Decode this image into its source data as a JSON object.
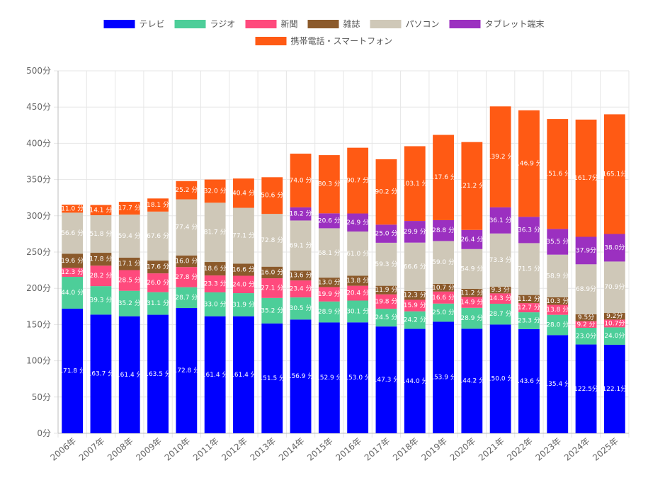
{
  "chart_data": {
    "type": "bar",
    "stacked": true,
    "grid": true,
    "legend_position": "top",
    "unit_suffix": "分",
    "categories": [
      "2006年",
      "2007年",
      "2008年",
      "2009年",
      "2010年",
      "2011年",
      "2012年",
      "2013年",
      "2014年",
      "2015年",
      "2016年",
      "2017年",
      "2018年",
      "2019年",
      "2020年",
      "2021年",
      "2022年",
      "2023年",
      "2024年",
      "2025年"
    ],
    "y_ticks": [
      "0分",
      "50分",
      "100分",
      "150分",
      "200分",
      "250分",
      "300分",
      "350分",
      "400分",
      "450分",
      "500分"
    ],
    "ylim": [
      0,
      500
    ],
    "series": [
      {
        "name": "テレビ",
        "color": "#0000ff",
        "values": [
          171.8,
          163.7,
          161.4,
          163.5,
          172.8,
          161.4,
          161.4,
          151.5,
          156.9,
          152.9,
          153.0,
          147.3,
          144.0,
          153.9,
          144.2,
          150.0,
          143.6,
          135.4,
          122.5,
          122.1
        ],
        "labels": [
          "171.8 分",
          "163.7 分",
          "161.4 分",
          "163.5 分",
          "172.8 分",
          "161.4 分",
          "161.4 分",
          "151.5 分",
          "156.9 分",
          "152.9 分",
          "153.0 分",
          "147.3 分",
          "144.0 分",
          "153.9 分",
          "144.2 分",
          "150.0 分",
          "143.6 分",
          "135.4 分",
          "122.5分",
          "122.1分"
        ]
      },
      {
        "name": "ラジオ",
        "color": "#4dce99",
        "values": [
          44.0,
          39.3,
          35.2,
          31.1,
          28.7,
          33.0,
          31.9,
          35.2,
          30.5,
          28.9,
          30.1,
          24.5,
          24.2,
          25.0,
          28.9,
          28.7,
          23.3,
          28.0,
          23.0,
          24.0
        ],
        "labels": [
          "44.0 分",
          "39.3 分",
          "35.2 分",
          "31.1 分",
          "28.7 分",
          "33.0 分",
          "31.9 分",
          "35.2 分",
          "30.5 分",
          "28.9 分",
          "30.1 分",
          "24.5 分",
          "24.2 分",
          "25.0 分",
          "28.9 分",
          "28.7 分",
          "23.3 分",
          "28.0 分",
          "23.0分",
          "24.0分"
        ]
      },
      {
        "name": "新聞",
        "color": "#ff4a7d",
        "values": [
          12.3,
          28.2,
          28.5,
          26.0,
          27.8,
          23.3,
          24.0,
          27.1,
          23.4,
          19.9,
          20.4,
          19.8,
          15.9,
          16.6,
          14.9,
          14.3,
          12.7,
          13.8,
          9.2,
          10.7
        ],
        "labels": [
          "12.3 分",
          "28.2 分",
          "28.5 分",
          "26.0 分",
          "27.8 分",
          "23.3 分",
          "24.0 分",
          "27.1 分",
          "23.4 分",
          "19.9 分",
          "20.4 分",
          "19.8 分",
          "15.9 分",
          "16.6 分",
          "14.9 分",
          "14.3 分",
          "12.7 分",
          "13.8 分",
          "9.2 分",
          "10.7分"
        ]
      },
      {
        "name": "雑誌",
        "color": "#8b5a2b",
        "values": [
          19.6,
          17.8,
          17.1,
          17.6,
          16.0,
          18.6,
          16.6,
          16.0,
          13.6,
          13.0,
          13.8,
          11.9,
          12.3,
          10.7,
          11.2,
          9.3,
          11.2,
          10.3,
          9.5,
          9.2
        ],
        "labels": [
          "19.6 分",
          "17.8 分",
          "17.1 分",
          "17.6 分",
          "16.0 分",
          "18.6 分",
          "16.6 分",
          "16.0 分",
          "13.6 分",
          "13.0 分",
          "13.8 分",
          "11.9 分",
          "12.3 分",
          "10.7 分",
          "11.2 分",
          "9.3 分",
          "11.2 分",
          "10.3 分",
          "9.5分",
          "9.2分"
        ]
      },
      {
        "name": "パソコン",
        "color": "#cfc8b8",
        "values": [
          56.6,
          51.8,
          59.4,
          67.6,
          77.4,
          81.7,
          77.1,
          72.8,
          69.1,
          68.1,
          61.0,
          59.3,
          66.6,
          59.0,
          54.9,
          73.3,
          71.5,
          58.9,
          68.9,
          70.9
        ],
        "labels": [
          "56.6 分",
          "51.8 分",
          "59.4 分",
          "67.6 分",
          "77.4 分",
          "81.7 分",
          "77.1 分",
          "72.8 分",
          "69.1 分",
          "68.1 分",
          "61.0 分",
          "59.3 分",
          "66.6 分",
          "59.0 分",
          "54.9 分",
          "73.3 分",
          "71.5 分",
          "58.9 分",
          "68.9分",
          "70.9分"
        ]
      },
      {
        "name": "タブレット端末",
        "color": "#9b30c0",
        "values": [
          0,
          0,
          0,
          0,
          0,
          0,
          0,
          0,
          18.2,
          20.6,
          24.9,
          25.0,
          29.9,
          28.8,
          26.4,
          36.1,
          36.3,
          35.5,
          37.9,
          38.0
        ],
        "labels": [
          "",
          "",
          "",
          "",
          "",
          "",
          "",
          "",
          "18.2 分",
          "20.6 分",
          "24.9 分",
          "25.0 分",
          "29.9 分",
          "28.8 分",
          "26.4 分",
          "36.1 分",
          "36.3 分",
          "35.5 分",
          "37.9分",
          "38.0分"
        ]
      },
      {
        "name": "携帯電話・スマートフォン",
        "color": "#ff5a14",
        "values": [
          11.0,
          14.1,
          17.7,
          18.1,
          25.2,
          32.0,
          40.4,
          50.6,
          74.0,
          80.3,
          90.7,
          90.2,
          103.1,
          117.6,
          121.2,
          139.2,
          146.9,
          151.6,
          161.7,
          165.1
        ],
        "labels": [
          "11.0 分",
          "14.1 分",
          "17.7 分",
          "18.1 分",
          "25.2 分",
          "32.0 分",
          "40.4 分",
          "50.6 分",
          "74.0 分",
          "80.3 分",
          "90.7 分",
          "90.2 分",
          "103.1 分",
          "117.6 分",
          "121.2 分",
          "139.2 分",
          "146.9 分",
          "151.6 分",
          "161.7分",
          "165.1分"
        ]
      }
    ]
  }
}
